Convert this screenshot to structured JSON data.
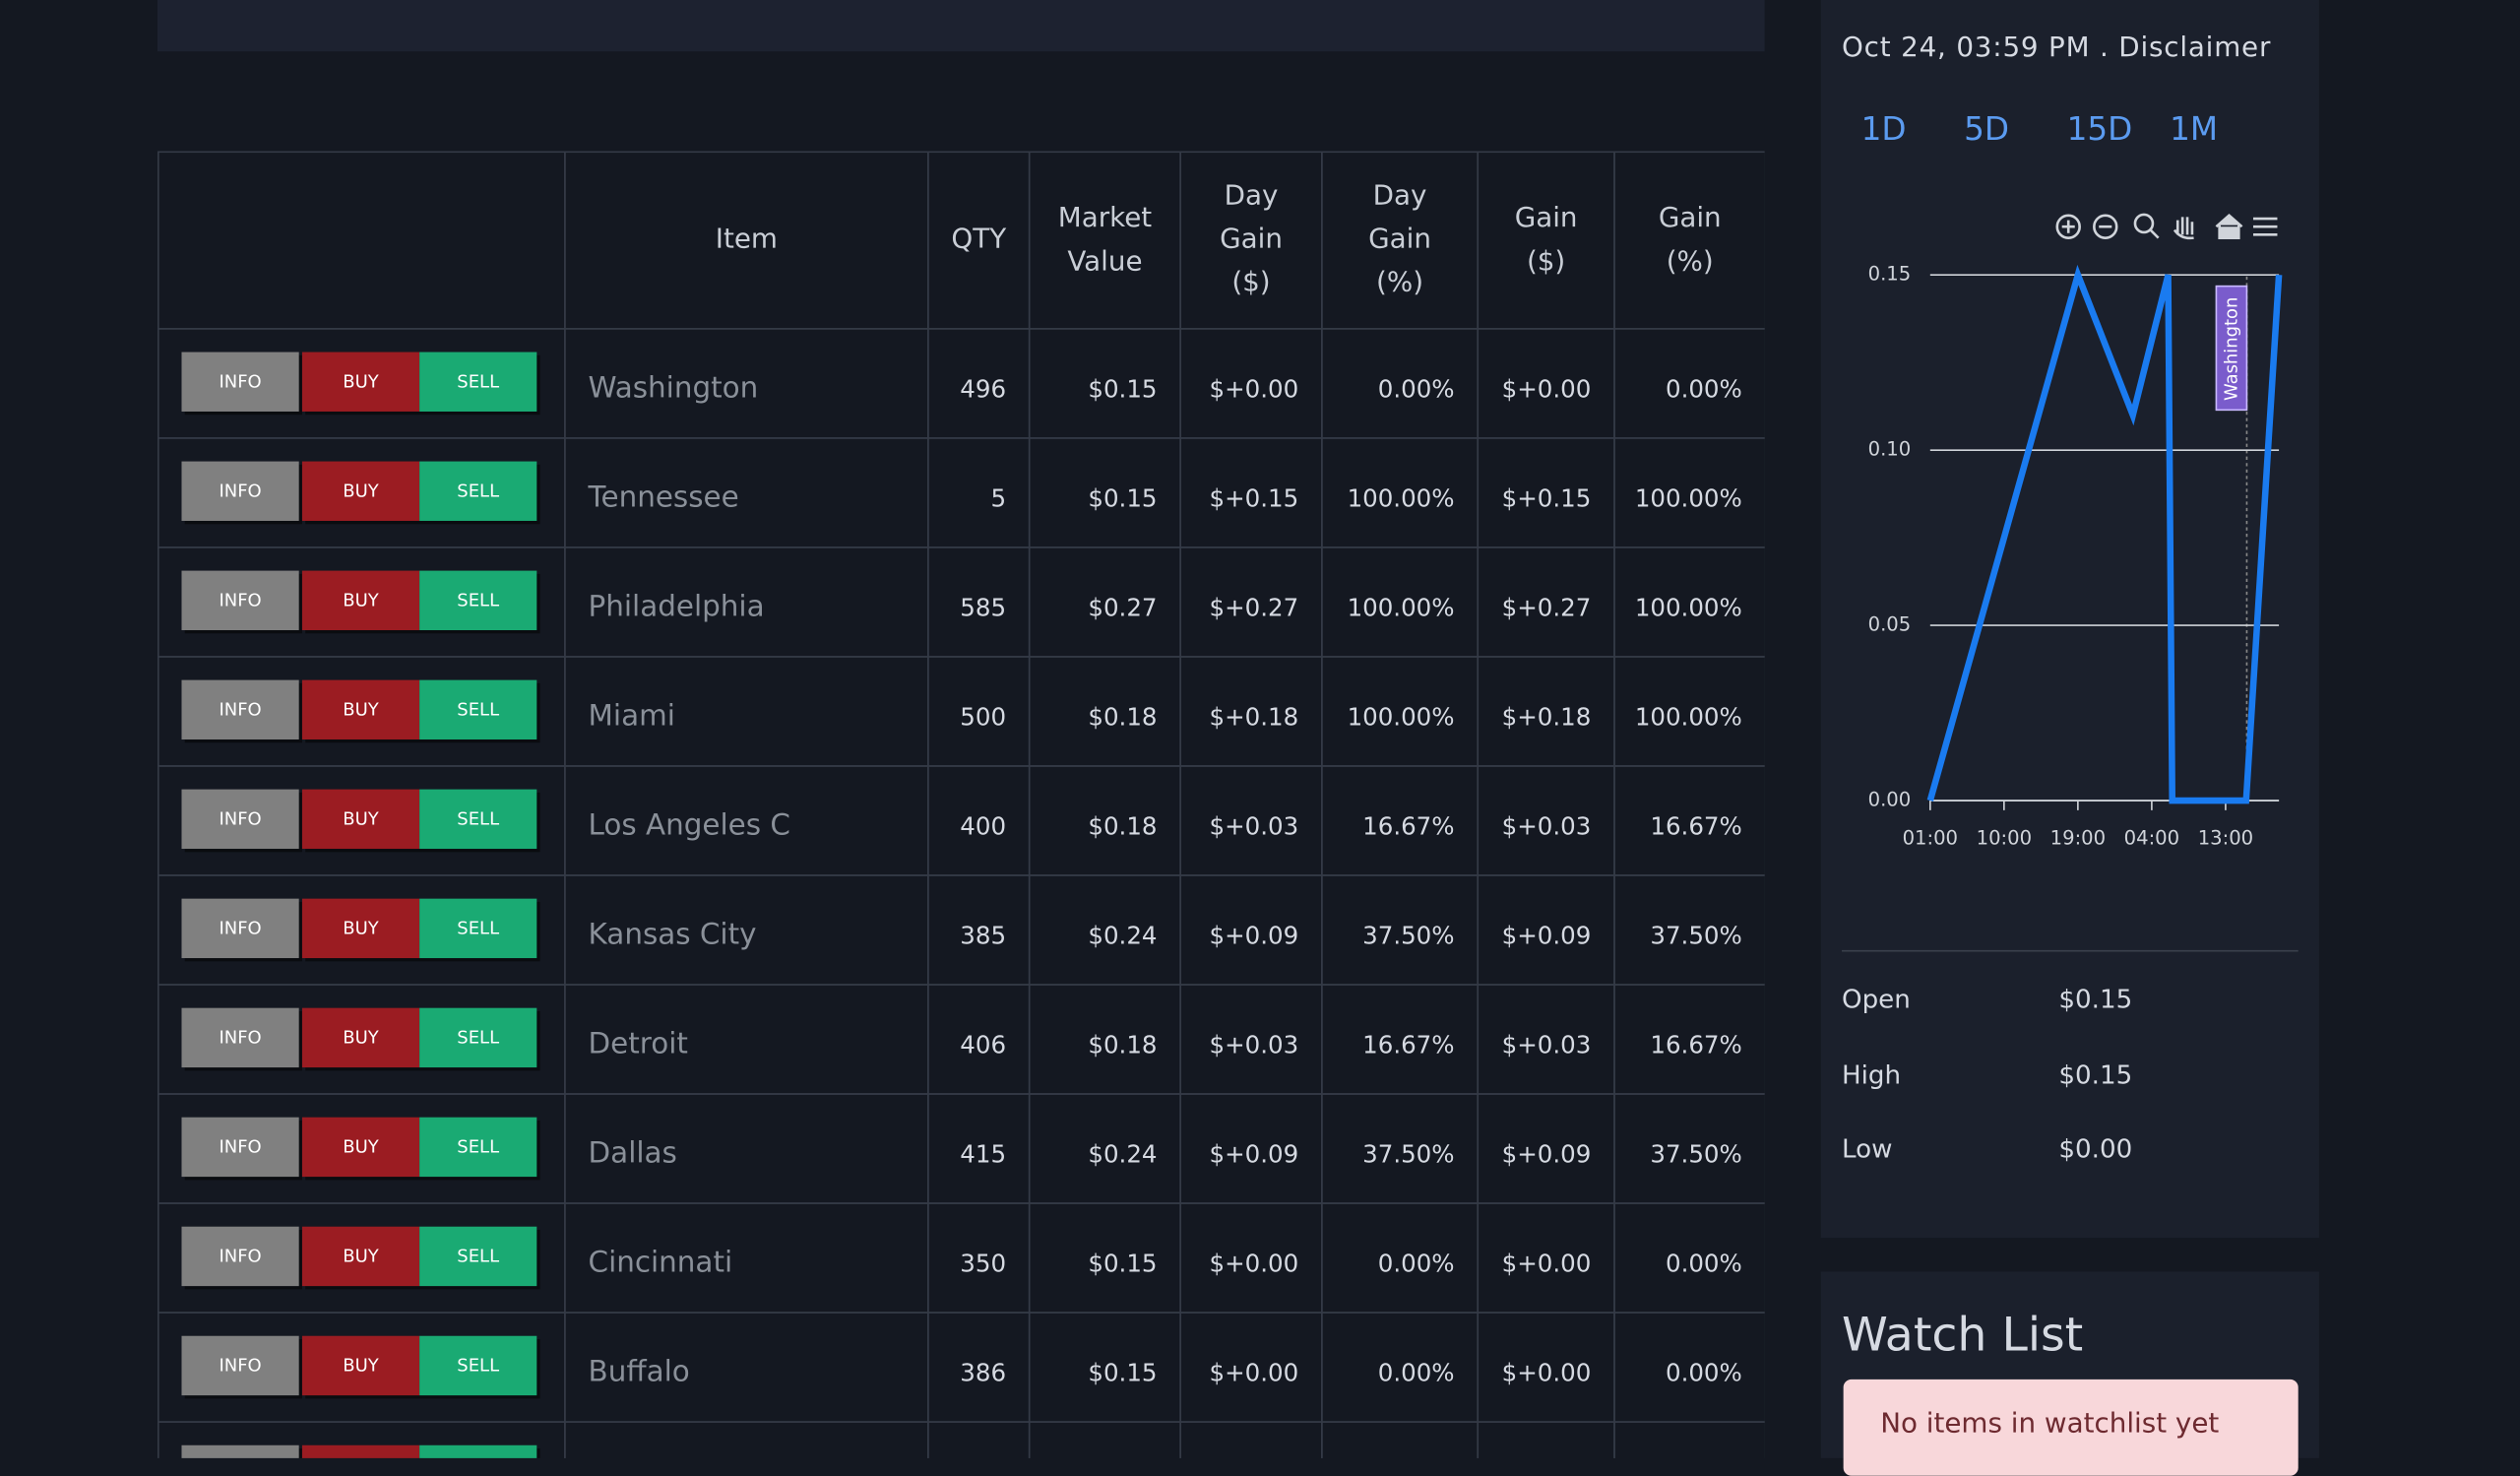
{
  "table": {
    "headers": [
      "Item",
      "QTY",
      "Market Value",
      "Day Gain ($)",
      "Day Gain (%)",
      "Gain ($)",
      "Gain (%)"
    ],
    "buttons": [
      "INFO",
      "BUY",
      "SELL"
    ],
    "rows": [
      [
        "Washington",
        "496",
        "$0.15",
        "$+0.00",
        "0.00%",
        "$+0.00",
        "0.00%"
      ],
      [
        "Tennessee",
        "5",
        "$0.15",
        "$+0.15",
        "100.00%",
        "$+0.15",
        "100.00%"
      ],
      [
        "Philadelphia",
        "585",
        "$0.27",
        "$+0.27",
        "100.00%",
        "$+0.27",
        "100.00%"
      ],
      [
        "Miami",
        "500",
        "$0.18",
        "$+0.18",
        "100.00%",
        "$+0.18",
        "100.00%"
      ],
      [
        "Los Angeles C",
        "400",
        "$0.18",
        "$+0.03",
        "16.67%",
        "$+0.03",
        "16.67%"
      ],
      [
        "Kansas City",
        "385",
        "$0.24",
        "$+0.09",
        "37.50%",
        "$+0.09",
        "37.50%"
      ],
      [
        "Detroit",
        "406",
        "$0.18",
        "$+0.03",
        "16.67%",
        "$+0.03",
        "16.67%"
      ],
      [
        "Dallas",
        "415",
        "$0.24",
        "$+0.09",
        "37.50%",
        "$+0.09",
        "37.50%"
      ],
      [
        "Cincinnati",
        "350",
        "$0.15",
        "$+0.00",
        "0.00%",
        "$+0.00",
        "0.00%"
      ],
      [
        "Buffalo",
        "386",
        "$0.15",
        "$+0.00",
        "0.00%",
        "$+0.00",
        "0.00%"
      ]
    ]
  },
  "side": {
    "timestamp": "Oct 24, 03:59 PM . Disclaimer",
    "ranges": [
      "1D",
      "5D",
      "15D",
      "1M"
    ],
    "stats": [
      [
        "Open",
        "$0.15"
      ],
      [
        "High",
        "$0.15"
      ],
      [
        "Low",
        "$0.00"
      ]
    ]
  },
  "watchlist": {
    "title": "Watch List",
    "empty": "No items in watchlist yet"
  },
  "chart_data": {
    "type": "line",
    "series": [
      {
        "name": "Washington",
        "color": "#1a7bf0",
        "x": [
          0,
          18,
          24.7,
          29,
          29.5,
          38.5,
          42.5
        ],
        "values": [
          0,
          0.15,
          0.11,
          0.15,
          0,
          0,
          0.15
        ]
      }
    ],
    "xlim": [
      0,
      42.5
    ],
    "xticks": [
      {
        "value": 0,
        "label": "01:00"
      },
      {
        "value": 9,
        "label": "10:00"
      },
      {
        "value": 18,
        "label": "19:00"
      },
      {
        "value": 27,
        "label": "04:00"
      },
      {
        "value": 36,
        "label": "13:00"
      }
    ],
    "ylim": [
      0,
      0.15
    ],
    "yticks": [
      {
        "value": 0,
        "label": "0.00"
      },
      {
        "value": 0.05,
        "label": "0.05"
      },
      {
        "value": 0.1,
        "label": "0.10"
      },
      {
        "value": 0.15,
        "label": "0.15"
      }
    ],
    "grid": true
  }
}
